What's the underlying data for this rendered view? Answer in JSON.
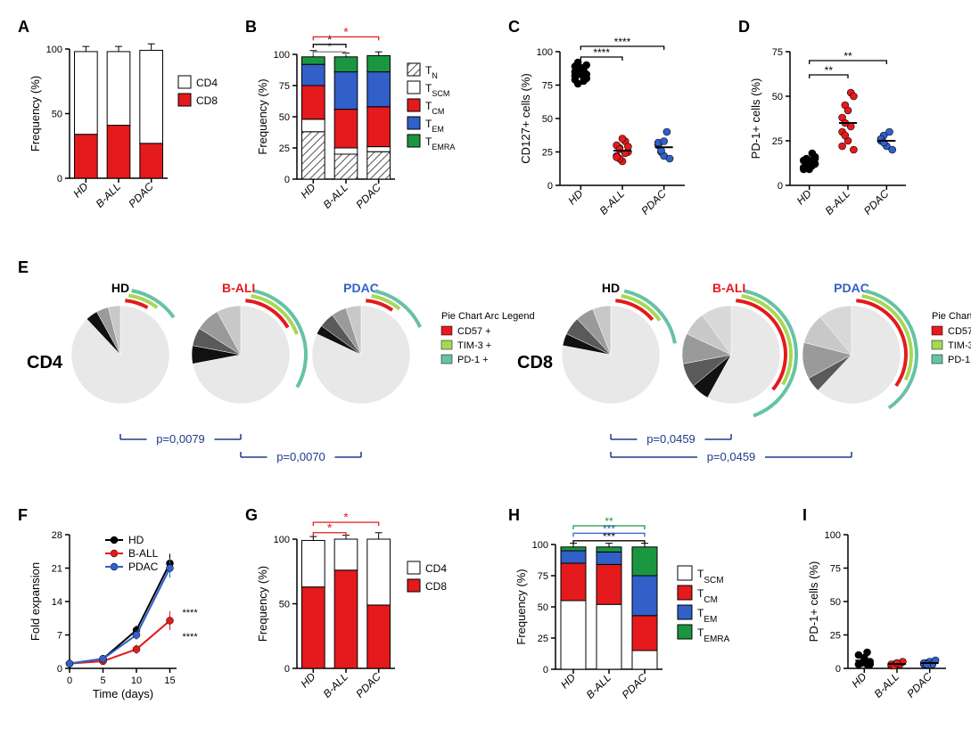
{
  "colors": {
    "cd4": "#ffffff",
    "cd8": "#e41a1c",
    "black": "#000000",
    "red": "#e41a1c",
    "blue": "#3060c8",
    "gray": "#888888",
    "tn_hatch": "#888888",
    "tscm": "#ffffff",
    "tcm": "#e41a1c",
    "tem": "#3060c8",
    "temra": "#1a9641",
    "cd57": "#e41a1c",
    "tim3": "#a6d854",
    "pd1": "#66c2a5",
    "pie_bg": "#e8e8e8",
    "pie_dark": "#5a5a5a",
    "pie_mid": "#9a9a9a",
    "pie_light": "#c8c8c8",
    "pie_black": "#111111",
    "pvalue_line": "#1e3a8a"
  },
  "categories": [
    "HD",
    "B-ALL",
    "PDAC"
  ],
  "A": {
    "ylabel": "Frequency (%)",
    "ylim": [
      0,
      100
    ],
    "ytick_step": 50,
    "legend": [
      "CD4",
      "CD8"
    ],
    "bars": [
      {
        "cat": "HD",
        "cd8": 34,
        "cd4": 64,
        "err": 4
      },
      {
        "cat": "B-ALL",
        "cd8": 41,
        "cd4": 57,
        "err": 4
      },
      {
        "cat": "PDAC",
        "cd8": 27,
        "cd4": 72,
        "err": 5
      }
    ]
  },
  "B": {
    "ylabel": "Frequency (%)",
    "ylim": [
      0,
      100
    ],
    "ytick_step": 25,
    "legend": [
      "T",
      "T",
      "T",
      "T",
      "T"
    ],
    "legend_sub": [
      "N",
      "SCM",
      "CM",
      "EM",
      "EMRA"
    ],
    "bars": [
      {
        "cat": "HD",
        "tn": 38,
        "tscm": 10,
        "tcm": 27,
        "tem": 17,
        "temra": 6,
        "err": 5
      },
      {
        "cat": "B-ALL",
        "tn": 20,
        "tscm": 5,
        "tcm": 31,
        "tem": 30,
        "temra": 12,
        "err": 3
      },
      {
        "cat": "PDAC",
        "tn": 22,
        "tscm": 4,
        "tcm": 32,
        "tem": 28,
        "temra": 13,
        "err": 3
      }
    ],
    "sig": [
      {
        "from": 0,
        "to": 1,
        "y": 102,
        "label": "*",
        "color": "#888888"
      },
      {
        "from": 0,
        "to": 1,
        "y": 108,
        "label": "*",
        "color": "#000000"
      },
      {
        "from": 0,
        "to": 2,
        "y": 114,
        "label": "*",
        "color": "#e41a1c"
      }
    ]
  },
  "C": {
    "ylabel": "CD127+ cells (%)",
    "ylim": [
      0,
      100
    ],
    "ytick_step": 25,
    "groups": [
      {
        "cat": "HD",
        "color": "#000000",
        "points": [
          85,
          83,
          88,
          84,
          90,
          82,
          86,
          87,
          81,
          80,
          79,
          92,
          84,
          78,
          83,
          89,
          76,
          84,
          86,
          83
        ]
      },
      {
        "cat": "B-ALL",
        "color": "#e41a1c",
        "points": [
          22,
          28,
          18,
          33,
          25,
          30,
          20,
          35,
          24,
          29,
          21,
          27
        ]
      },
      {
        "cat": "PDAC",
        "color": "#3060c8",
        "points": [
          30,
          25,
          22,
          40,
          20,
          32,
          26,
          33
        ]
      }
    ],
    "sig": [
      {
        "from": 0,
        "to": 1,
        "y": 96,
        "label": "****"
      },
      {
        "from": 0,
        "to": 2,
        "y": 104,
        "label": "****"
      }
    ]
  },
  "D": {
    "ylabel": "PD-1+ cells (%)",
    "ylim": [
      0,
      75
    ],
    "ytick_step": 25,
    "groups": [
      {
        "cat": "HD",
        "color": "#000000",
        "points": [
          10,
          12,
          14,
          11,
          16,
          9,
          15,
          13,
          18,
          12,
          14,
          11,
          9,
          13,
          15
        ]
      },
      {
        "cat": "B-ALL",
        "color": "#e41a1c",
        "points": [
          30,
          45,
          25,
          52,
          20,
          38,
          28,
          42,
          33,
          50,
          22,
          35
        ]
      },
      {
        "cat": "PDAC",
        "color": "#3060c8",
        "points": [
          25,
          28,
          22,
          30,
          20,
          26,
          24
        ]
      }
    ],
    "sig": [
      {
        "from": 0,
        "to": 1,
        "y": 62,
        "label": "**"
      },
      {
        "from": 0,
        "to": 2,
        "y": 70,
        "label": "**"
      }
    ]
  },
  "E": {
    "cd4_label": "CD4",
    "cd8_label": "CD8",
    "arc_legend_title": "Pie Chart Arc Legend",
    "arc_legend": [
      {
        "label": "CD57 +",
        "color": "#e41a1c"
      },
      {
        "label": "TIM-3 +",
        "color": "#a6d854"
      },
      {
        "label": "PD-1 +",
        "color": "#66c2a5"
      }
    ],
    "cd4": {
      "pies": [
        {
          "title": "HD",
          "title_color": "#000000",
          "slices": [
            {
              "v": 88,
              "c": "#e8e8e8"
            },
            {
              "v": 4,
              "c": "#111111"
            },
            {
              "v": 4,
              "c": "#9a9a9a"
            },
            {
              "v": 4,
              "c": "#c8c8c8"
            }
          ],
          "arcs": [
            {
              "color": "#e41a1c",
              "start": -85,
              "end": -60
            },
            {
              "color": "#a6d854",
              "start": -82,
              "end": -52
            },
            {
              "color": "#66c2a5",
              "start": -80,
              "end": -35
            }
          ]
        },
        {
          "title": "B-ALL",
          "title_color": "#e41a1c",
          "slices": [
            {
              "v": 72,
              "c": "#e8e8e8"
            },
            {
              "v": 6,
              "c": "#111111"
            },
            {
              "v": 6,
              "c": "#5a5a5a"
            },
            {
              "v": 8,
              "c": "#9a9a9a"
            },
            {
              "v": 8,
              "c": "#c8c8c8"
            }
          ],
          "arcs": [
            {
              "color": "#e41a1c",
              "start": -85,
              "end": -30
            },
            {
              "color": "#a6d854",
              "start": -80,
              "end": -20
            },
            {
              "color": "#66c2a5",
              "start": -78,
              "end": 30
            }
          ]
        },
        {
          "title": "PDAC",
          "title_color": "#3060c8",
          "slices": [
            {
              "v": 82,
              "c": "#e8e8e8"
            },
            {
              "v": 3,
              "c": "#111111"
            },
            {
              "v": 5,
              "c": "#5a5a5a"
            },
            {
              "v": 5,
              "c": "#9a9a9a"
            },
            {
              "v": 5,
              "c": "#c8c8c8"
            }
          ],
          "arcs": [
            {
              "color": "#e41a1c",
              "start": -85,
              "end": -55
            },
            {
              "color": "#a6d854",
              "start": -80,
              "end": -50
            },
            {
              "color": "#66c2a5",
              "start": -78,
              "end": -25
            }
          ]
        }
      ],
      "pvalues": [
        {
          "from": 0,
          "to": 1,
          "label": "p=0,0079"
        },
        {
          "from": 1,
          "to": 2,
          "label": "p=0,0070"
        }
      ]
    },
    "cd8": {
      "pies": [
        {
          "title": "HD",
          "title_color": "#000000",
          "slices": [
            {
              "v": 78,
              "c": "#e8e8e8"
            },
            {
              "v": 4,
              "c": "#111111"
            },
            {
              "v": 6,
              "c": "#5a5a5a"
            },
            {
              "v": 6,
              "c": "#9a9a9a"
            },
            {
              "v": 6,
              "c": "#c8c8c8"
            }
          ],
          "arcs": [
            {
              "color": "#e41a1c",
              "start": -85,
              "end": -40
            },
            {
              "color": "#a6d854",
              "start": -80,
              "end": -35
            },
            {
              "color": "#66c2a5",
              "start": -78,
              "end": -10
            }
          ]
        },
        {
          "title": "B-ALL",
          "title_color": "#e41a1c",
          "slices": [
            {
              "v": 58,
              "c": "#e8e8e8"
            },
            {
              "v": 6,
              "c": "#111111"
            },
            {
              "v": 8,
              "c": "#5a5a5a"
            },
            {
              "v": 10,
              "c": "#9a9a9a"
            },
            {
              "v": 8,
              "c": "#c8c8c8"
            },
            {
              "v": 10,
              "c": "#d8d8d8"
            }
          ],
          "arcs": [
            {
              "color": "#e41a1c",
              "start": -85,
              "end": 40
            },
            {
              "color": "#a6d854",
              "start": -80,
              "end": 30
            },
            {
              "color": "#66c2a5",
              "start": -78,
              "end": 70
            }
          ]
        },
        {
          "title": "PDAC",
          "title_color": "#3060c8",
          "slices": [
            {
              "v": 62,
              "c": "#e8e8e8"
            },
            {
              "v": 5,
              "c": "#5a5a5a"
            },
            {
              "v": 12,
              "c": "#9a9a9a"
            },
            {
              "v": 10,
              "c": "#c8c8c8"
            },
            {
              "v": 11,
              "c": "#d8d8d8"
            }
          ],
          "arcs": [
            {
              "color": "#e41a1c",
              "start": -85,
              "end": 35
            },
            {
              "color": "#a6d854",
              "start": -80,
              "end": 25
            },
            {
              "color": "#66c2a5",
              "start": -78,
              "end": 55
            }
          ]
        }
      ],
      "pvalues": [
        {
          "from": 0,
          "to": 1,
          "label": "p=0,0459"
        },
        {
          "from": 0,
          "to": 2,
          "label": "p=0,0459"
        }
      ]
    }
  },
  "F": {
    "ylabel": "Fold expansion",
    "xlabel": "Time (days)",
    "xlim": [
      0,
      16
    ],
    "xticks": [
      0,
      5,
      10,
      15
    ],
    "ylim": [
      0,
      28
    ],
    "ytick_step": 7,
    "legend": [
      {
        "label": "HD",
        "color": "#000000"
      },
      {
        "label": "B-ALL",
        "color": "#e41a1c"
      },
      {
        "label": "PDAC",
        "color": "#3060c8"
      }
    ],
    "series": [
      {
        "color": "#000000",
        "points": [
          [
            0,
            1
          ],
          [
            5,
            2
          ],
          [
            10,
            8
          ],
          [
            15,
            22
          ]
        ],
        "err": [
          0,
          0.5,
          1,
          2
        ]
      },
      {
        "color": "#e41a1c",
        "points": [
          [
            0,
            1
          ],
          [
            5,
            1.5
          ],
          [
            10,
            4
          ],
          [
            15,
            10
          ]
        ],
        "err": [
          0,
          0.5,
          1,
          2
        ]
      },
      {
        "color": "#3060c8",
        "points": [
          [
            0,
            1
          ],
          [
            5,
            2
          ],
          [
            10,
            7
          ],
          [
            15,
            21
          ]
        ],
        "err": [
          0,
          0.5,
          1,
          2
        ]
      }
    ],
    "sig": [
      {
        "label": "****",
        "y": 6
      },
      {
        "label": "****",
        "y": 11
      }
    ]
  },
  "G": {
    "ylabel": "Frequency (%)",
    "ylim": [
      0,
      100
    ],
    "ytick_step": 50,
    "legend": [
      "CD4",
      "CD8"
    ],
    "bars": [
      {
        "cat": "HD",
        "cd8": 63,
        "cd4": 36,
        "err": 3
      },
      {
        "cat": "B-ALL",
        "cd8": 76,
        "cd4": 24,
        "err": 3
      },
      {
        "cat": "PDAC",
        "cd8": 49,
        "cd4": 51,
        "err": 5
      }
    ],
    "sig": [
      {
        "from": 0,
        "to": 1,
        "y": 105,
        "label": "*",
        "color": "#e41a1c"
      },
      {
        "from": 0,
        "to": 2,
        "y": 113,
        "label": "*",
        "color": "#e41a1c"
      }
    ]
  },
  "H": {
    "ylabel": "Frequency (%)",
    "ylim": [
      0,
      100
    ],
    "ytick_step": 25,
    "legend": [
      "T",
      "T",
      "T",
      "T"
    ],
    "legend_sub": [
      "SCM",
      "CM",
      "EM",
      "EMRA"
    ],
    "bars": [
      {
        "cat": "HD",
        "tscm": 55,
        "tcm": 30,
        "tem": 10,
        "temra": 3,
        "err": 3
      },
      {
        "cat": "B-ALL",
        "tscm": 52,
        "tcm": 32,
        "tem": 10,
        "temra": 4,
        "err": 3
      },
      {
        "cat": "PDAC",
        "tscm": 15,
        "tcm": 28,
        "tem": 32,
        "temra": 23,
        "err": 3
      }
    ],
    "sig": [
      {
        "from": 0,
        "to": 2,
        "y": 103,
        "label": "***",
        "color": "#000000"
      },
      {
        "from": 0,
        "to": 2,
        "y": 109,
        "label": "***",
        "color": "#3060c8"
      },
      {
        "from": 0,
        "to": 2,
        "y": 115,
        "label": "**",
        "color": "#1a9641"
      }
    ]
  },
  "I": {
    "ylabel": "PD-1+ cells (%)",
    "ylim": [
      0,
      100
    ],
    "ytick_step": 25,
    "groups": [
      {
        "cat": "HD",
        "color": "#000000",
        "points": [
          3,
          4,
          6,
          3,
          5,
          10,
          4,
          8,
          12,
          3
        ]
      },
      {
        "cat": "B-ALL",
        "color": "#e41a1c",
        "points": [
          2,
          3,
          4,
          3,
          5,
          3,
          2,
          4
        ]
      },
      {
        "cat": "PDAC",
        "color": "#3060c8",
        "points": [
          3,
          4,
          5,
          3,
          6,
          4,
          3
        ]
      }
    ]
  }
}
